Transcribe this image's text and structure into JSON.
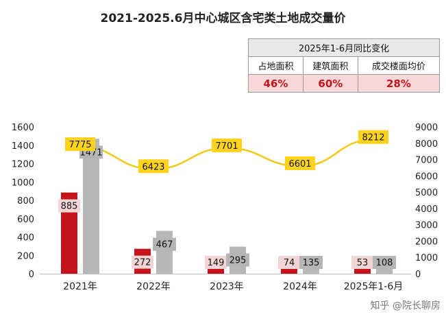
{
  "title": "2021-2025.6月中心城区含宅类土地成交量价",
  "summary_table": {
    "header": "2025年1-6月同比变化",
    "columns": [
      "占地面积",
      "建筑面积",
      "成交楼面均价"
    ],
    "values": [
      "46%",
      "60%",
      "28%"
    ]
  },
  "watermark": "知乎 @院长聊房",
  "colors": {
    "land_area": "#c3151b",
    "building_area": "#b8b8b8",
    "price_line": "#f2c811",
    "price_label_bg": "#ffd21e"
  },
  "chart_data": {
    "type": "bar",
    "categories": [
      "2021年",
      "2022年",
      "2023年",
      "2024年",
      "2025年1-6月"
    ],
    "series": [
      {
        "type": "bar",
        "axis": "left",
        "values": [
          885,
          272,
          149,
          74,
          53
        ]
      },
      {
        "type": "bar",
        "axis": "left",
        "values": [
          1471,
          467,
          295,
          135,
          108
        ]
      },
      {
        "type": "line",
        "axis": "right",
        "smooth": true,
        "values": [
          7775,
          6423,
          7701,
          6601,
          8212
        ]
      }
    ],
    "y_left": {
      "min": 0,
      "max": 1600,
      "ticks": [
        0,
        200,
        400,
        600,
        800,
        1000,
        1200,
        1400,
        1600
      ]
    },
    "y_right": {
      "min": 0,
      "max": 9000,
      "ticks": [
        0,
        1000,
        2000,
        3000,
        4000,
        5000,
        6000,
        7000,
        8000,
        9000
      ]
    },
    "grid": false,
    "legend": "none"
  }
}
